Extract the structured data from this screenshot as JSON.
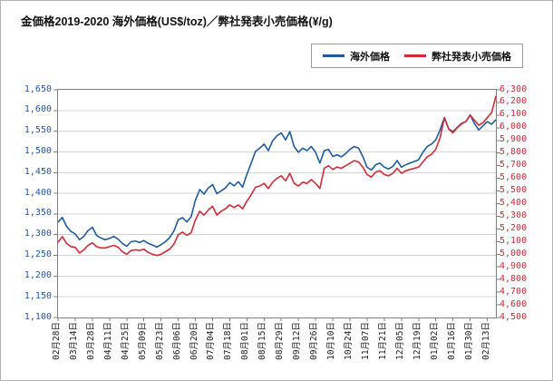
{
  "page": {
    "background": "#ffffff",
    "border_color": "#b3b3b3"
  },
  "chart_data": {
    "type": "line",
    "title": "金価格2019-2020 海外価格(US$/toz)／弊社発表小売価格(¥/g)",
    "grid": "horizontal",
    "legend_position": "top-right",
    "x_points_per_tick": 4,
    "x_tick_labels": [
      "02月28日",
      "03月14日",
      "03月28日",
      "04月11日",
      "04月25日",
      "05月09日",
      "05月23日",
      "06月06日",
      "06月20日",
      "07月04日",
      "07月18日",
      "08月01日",
      "08月15日",
      "08月29日",
      "09月12日",
      "09月26日",
      "10月10日",
      "10月24日",
      "11月07日",
      "11月21日",
      "12月05日",
      "12月19日",
      "01月02日",
      "01月16日",
      "01月30日",
      "02月13日"
    ],
    "left_axis": {
      "min": 1100,
      "max": 1650,
      "step": 50,
      "unit": "US$/toz",
      "color": "#2458a8"
    },
    "right_axis": {
      "min": 4500,
      "max": 6300,
      "step": 100,
      "unit": "¥/g",
      "color": "#d42a38"
    },
    "series": [
      {
        "name": "海外価格",
        "axis": "left",
        "color": "#1f5c9e",
        "values": [
          1330,
          1342,
          1320,
          1308,
          1302,
          1288,
          1296,
          1310,
          1318,
          1298,
          1292,
          1288,
          1291,
          1296,
          1289,
          1279,
          1272,
          1283,
          1285,
          1281,
          1286,
          1279,
          1275,
          1270,
          1276,
          1283,
          1293,
          1309,
          1336,
          1341,
          1331,
          1343,
          1383,
          1409,
          1398,
          1413,
          1421,
          1399,
          1406,
          1413,
          1426,
          1418,
          1428,
          1415,
          1446,
          1473,
          1501,
          1509,
          1519,
          1503,
          1527,
          1539,
          1546,
          1529,
          1549,
          1513,
          1499,
          1509,
          1503,
          1513,
          1499,
          1473,
          1503,
          1506,
          1489,
          1493,
          1488,
          1496,
          1506,
          1513,
          1509,
          1489,
          1463,
          1456,
          1469,
          1473,
          1463,
          1459,
          1465,
          1479,
          1463,
          1469,
          1473,
          1477,
          1481,
          1499,
          1513,
          1519,
          1529,
          1553,
          1583,
          1556,
          1549,
          1559,
          1569,
          1573,
          1589,
          1569,
          1553,
          1563,
          1573,
          1567,
          1578
        ]
      },
      {
        "name": "弊社発表小売価格",
        "axis": "right",
        "color": "#d42a38",
        "values": [
          5095,
          5140,
          5085,
          5060,
          5055,
          5010,
          5035,
          5070,
          5090,
          5060,
          5050,
          5050,
          5060,
          5070,
          5055,
          5020,
          5000,
          5030,
          5035,
          5030,
          5040,
          5015,
          5000,
          4990,
          5000,
          5020,
          5040,
          5080,
          5155,
          5175,
          5150,
          5170,
          5270,
          5340,
          5310,
          5350,
          5380,
          5310,
          5340,
          5360,
          5390,
          5370,
          5390,
          5360,
          5420,
          5470,
          5530,
          5540,
          5560,
          5520,
          5570,
          5600,
          5620,
          5580,
          5640,
          5560,
          5540,
          5570,
          5560,
          5590,
          5560,
          5520,
          5680,
          5700,
          5670,
          5690,
          5680,
          5700,
          5720,
          5740,
          5730,
          5690,
          5630,
          5610,
          5650,
          5660,
          5630,
          5620,
          5640,
          5680,
          5640,
          5660,
          5670,
          5680,
          5690,
          5730,
          5770,
          5790,
          5830,
          5920,
          6080,
          5990,
          5960,
          6000,
          6030,
          6050,
          6100,
          6060,
          6020,
          6040,
          6080,
          6120,
          6250
        ]
      }
    ]
  }
}
